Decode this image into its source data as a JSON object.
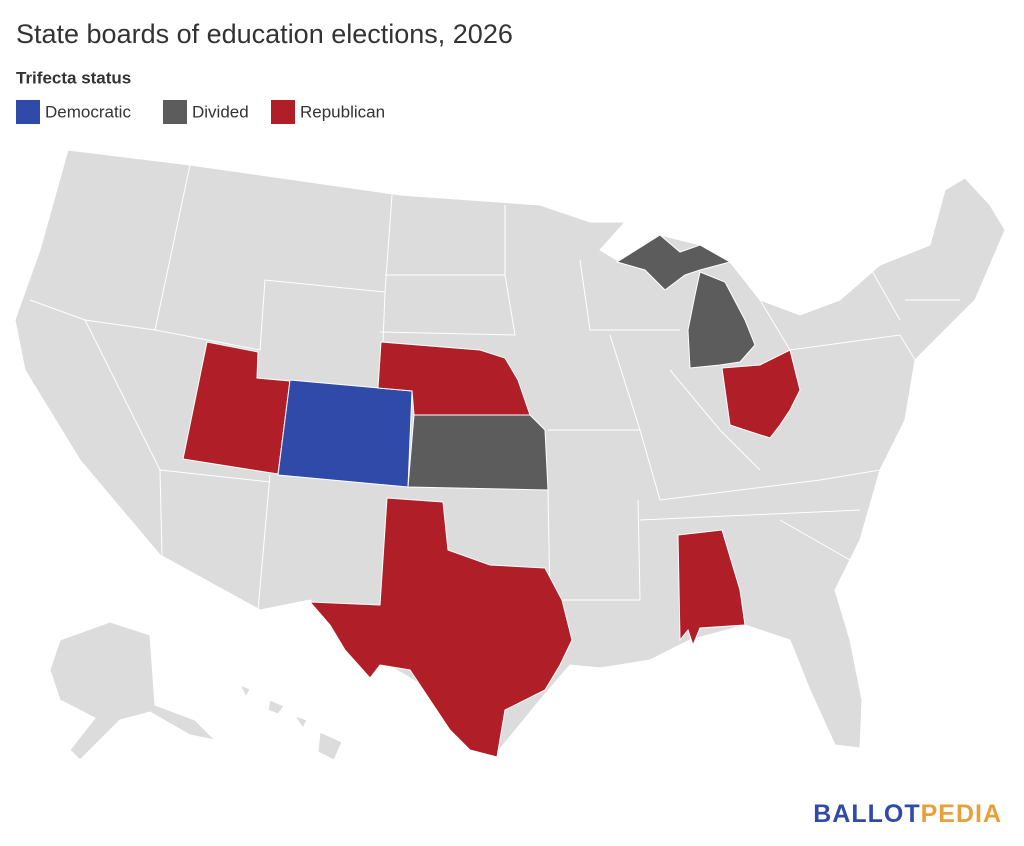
{
  "title": "State boards of education elections, 2026",
  "legend": {
    "title": "Trifecta status",
    "items": [
      {
        "label": "Democratic",
        "color": "#2f4aa8"
      },
      {
        "label": "Divided",
        "color": "#5c5c5c"
      },
      {
        "label": "Republican",
        "color": "#b01e27"
      }
    ]
  },
  "regions": [
    {
      "status": 2
    },
    {
      "status": 0
    },
    {
      "status": 2
    },
    {
      "status": 1
    },
    {
      "status": 2
    },
    {
      "status": 1
    },
    {
      "status": 2
    },
    {
      "status": 2
    }
  ],
  "logo": [
    "BALLOT",
    "PEDIA"
  ]
}
